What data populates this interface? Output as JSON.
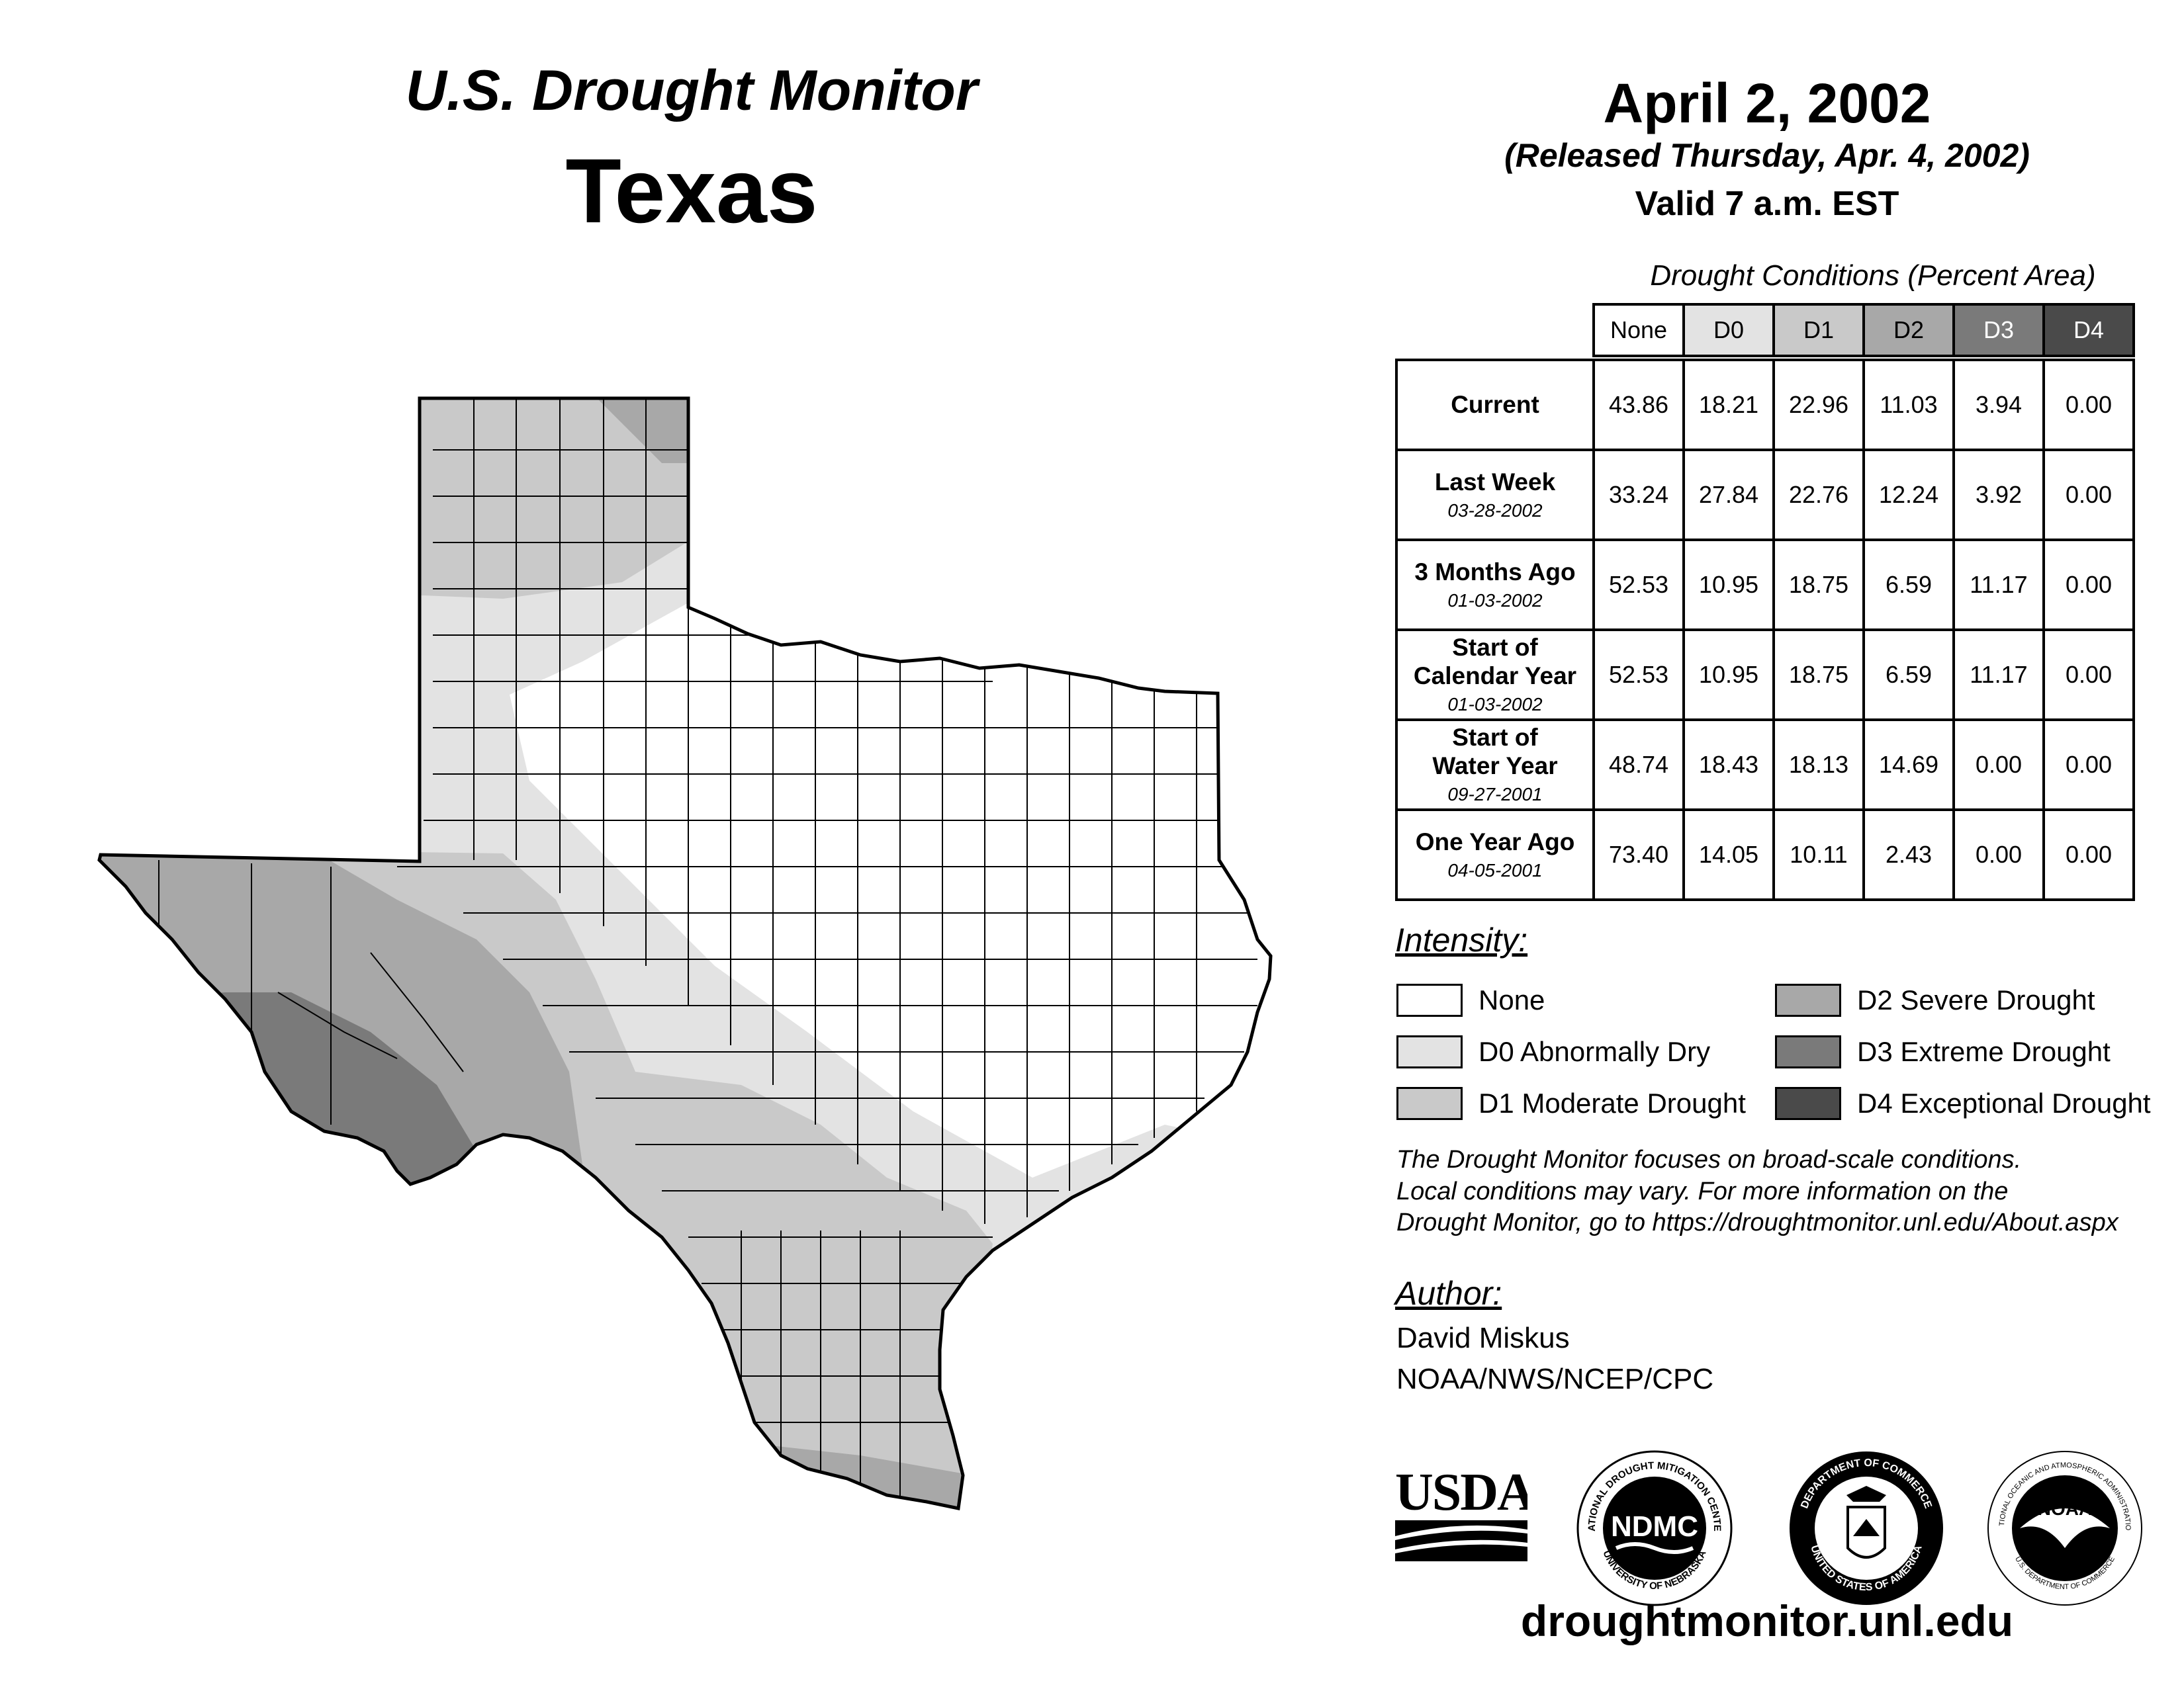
{
  "header": {
    "title": "U.S. Drought Monitor",
    "state": "Texas",
    "date": "April 2, 2002",
    "released": "(Released Thursday, Apr. 4, 2002)",
    "valid": "Valid 7 a.m. EST"
  },
  "conditions": {
    "caption": "Drought Conditions (Percent Area)",
    "columns": [
      "None",
      "D0",
      "D1",
      "D2",
      "D3",
      "D4"
    ],
    "rows": [
      {
        "label_lines": [
          "Current"
        ],
        "date": "",
        "values": [
          "43.86",
          "18.21",
          "22.96",
          "11.03",
          "3.94",
          "0.00"
        ]
      },
      {
        "label_lines": [
          "Last Week"
        ],
        "date": "03-28-2002",
        "values": [
          "33.24",
          "27.84",
          "22.76",
          "12.24",
          "3.92",
          "0.00"
        ]
      },
      {
        "label_lines": [
          "3 Months Ago"
        ],
        "date": "01-03-2002",
        "values": [
          "52.53",
          "10.95",
          "18.75",
          "6.59",
          "11.17",
          "0.00"
        ]
      },
      {
        "label_lines": [
          "Start of",
          "Calendar Year"
        ],
        "date": "01-03-2002",
        "values": [
          "52.53",
          "10.95",
          "18.75",
          "6.59",
          "11.17",
          "0.00"
        ]
      },
      {
        "label_lines": [
          "Start of",
          "Water Year"
        ],
        "date": "09-27-2001",
        "values": [
          "48.74",
          "18.43",
          "18.13",
          "14.69",
          "0.00",
          "0.00"
        ]
      },
      {
        "label_lines": [
          "One Year Ago"
        ],
        "date": "04-05-2001",
        "values": [
          "73.40",
          "14.05",
          "10.11",
          "2.43",
          "0.00",
          "0.00"
        ]
      }
    ]
  },
  "legend": {
    "title": "Intensity:",
    "items": [
      {
        "label": "None",
        "color": "#ffffff"
      },
      {
        "label": "D0 Abnormally Dry",
        "color": "#e3e3e3"
      },
      {
        "label": "D1 Moderate Drought",
        "color": "#c9c9c9"
      },
      {
        "label": "D2 Severe Drought",
        "color": "#a8a8a8"
      },
      {
        "label": "D3 Extreme Drought",
        "color": "#7a7a7a"
      },
      {
        "label": "D4 Exceptional Drought",
        "color": "#4a4a4a"
      }
    ]
  },
  "note": {
    "line1": "The Drought Monitor focuses on broad-scale conditions.",
    "line2": "Local conditions may vary. For more information on the",
    "line3": "Drought Monitor, go to https://droughtmonitor.unl.edu/About.aspx"
  },
  "author": {
    "title": "Author:",
    "name": "David Miskus",
    "org": "NOAA/NWS/NCEP/CPC"
  },
  "logos": {
    "usda": "USDA",
    "ndmc": "NDMC",
    "ndmc_ring_top": "NATIONAL DROUGHT MITIGATION CENTER",
    "ndmc_ring_bottom": "UNIVERSITY OF NEBRASKA",
    "doc_ring_top": "DEPARTMENT OF COMMERCE",
    "doc_ring_bottom": "UNITED STATES OF AMERICA",
    "noaa": "NOAA",
    "noaa_ring_top": "NATIONAL OCEANIC AND ATMOSPHERIC ADMINISTRATION",
    "noaa_ring_bottom": "U.S. DEPARTMENT OF COMMERCE"
  },
  "footer": {
    "url": "droughtmonitor.unl.edu"
  }
}
